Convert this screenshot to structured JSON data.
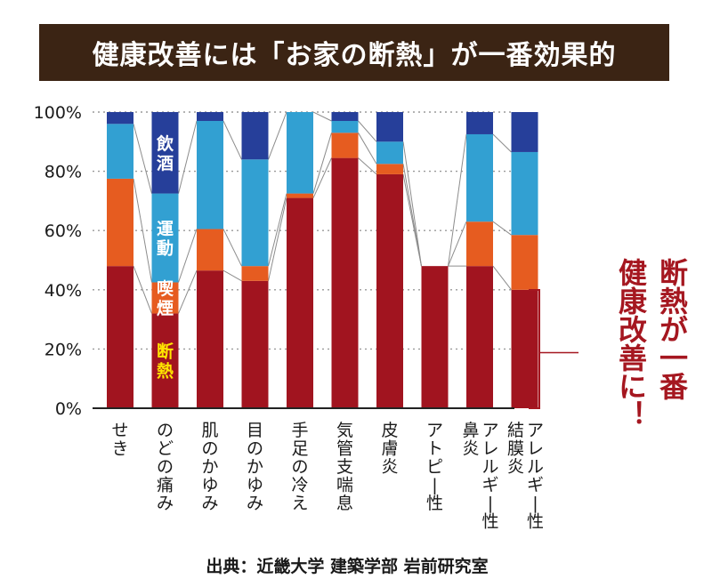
{
  "title": "健康改善には「お家の断熱」が一番効果的",
  "source": "出典：近畿大学 建築学部 岩前研究室",
  "callout": {
    "line1": "断熱が一番",
    "line2": "健康改善に！"
  },
  "colors": {
    "title_bg": "#3b2414",
    "断熱": "#a1141f",
    "喫煙": "#e65c20",
    "運動": "#32a0d2",
    "飲酒": "#263f9a",
    "callout": "#a51720"
  },
  "chart_data": {
    "type": "bar",
    "stacked": true,
    "normalized": true,
    "ylim": [
      0,
      100
    ],
    "yticks": [
      "0%",
      "20%",
      "40%",
      "60%",
      "80%",
      "100%"
    ],
    "grid": true,
    "categories": [
      "せき",
      "のどの痛み",
      "肌のかゆみ",
      "目のかゆみ",
      "手足の冷え",
      "気管支喘息",
      "皮膚炎",
      "アトピー性",
      "アレルギー性鼻炎",
      "アレルギー性結膜炎"
    ],
    "category_lines": [
      [
        "せき"
      ],
      [
        "のどの痛み"
      ],
      [
        "肌のかゆみ"
      ],
      [
        "目のかゆみ"
      ],
      [
        "手足の冷え"
      ],
      [
        "気管支喘息"
      ],
      [
        "皮膚炎"
      ],
      [
        "アトピー性"
      ],
      [
        "鼻炎",
        "アレルギー性"
      ],
      [
        "結膜炎",
        "アレルギー性"
      ]
    ],
    "series": [
      {
        "name": "断熱",
        "values": [
          48,
          32,
          46.5,
          43,
          71,
          84.5,
          79,
          48,
          48,
          40
        ]
      },
      {
        "name": "喫煙",
        "values": [
          29.5,
          10.5,
          14,
          5,
          1.5,
          8.5,
          3.5,
          0,
          15,
          18.5
        ]
      },
      {
        "name": "運動",
        "values": [
          18.5,
          30,
          36.5,
          36,
          27.5,
          4,
          7.5,
          0,
          29.5,
          28
        ]
      },
      {
        "name": "飲酒",
        "values": [
          4,
          27.5,
          3,
          16,
          0,
          3,
          10,
          0,
          7.5,
          13.5
        ]
      }
    ],
    "series_labels": {
      "断熱": "断熱",
      "喫煙": "喫煙",
      "運動": "運動",
      "飲酒": "飲酒"
    }
  }
}
